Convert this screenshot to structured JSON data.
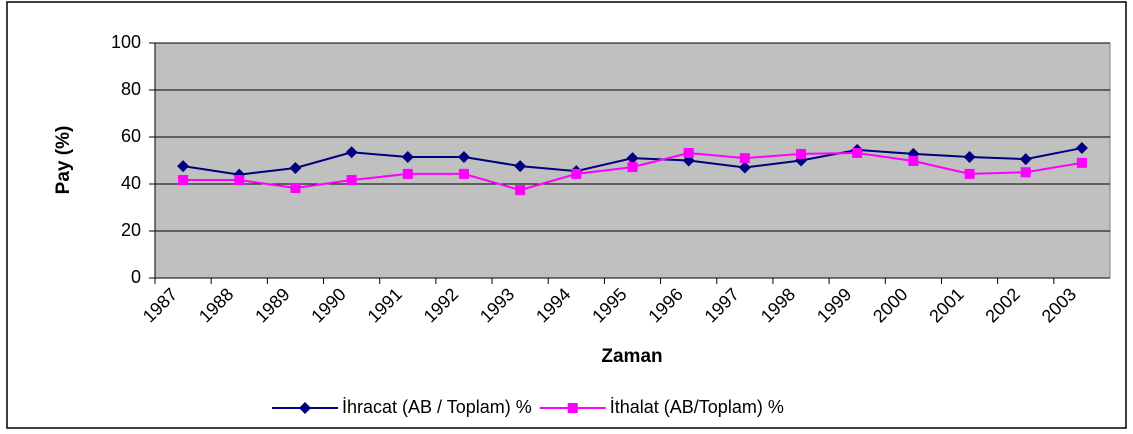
{
  "chart_data": {
    "type": "line",
    "x_label": "Zaman",
    "y_label": "Pay (%)",
    "categories": [
      "1987",
      "1988",
      "1989",
      "1990",
      "1991",
      "1992",
      "1993",
      "1994",
      "1995",
      "1996",
      "1997",
      "1998",
      "1999",
      "2000",
      "2001",
      "2002",
      "2003"
    ],
    "series": [
      {
        "name": "İhracat (AB / Toplam) %",
        "color": "#000080",
        "marker": "diamond",
        "values": [
          47.6,
          44.0,
          46.8,
          53.5,
          51.5,
          51.5,
          47.6,
          45.5,
          51.0,
          50.0,
          47.0,
          50.0,
          54.5,
          52.8,
          51.5,
          50.6,
          55.3
        ]
      },
      {
        "name": "İthalat (AB/Toplam) %",
        "color": "#ff00ff",
        "marker": "square",
        "values": [
          41.7,
          41.7,
          38.3,
          41.7,
          44.3,
          44.3,
          37.4,
          44.3,
          47.2,
          53.2,
          51.0,
          52.8,
          53.2,
          49.8,
          44.3,
          45.0,
          49.0
        ]
      }
    ],
    "ylim": [
      0,
      100
    ],
    "yticks": [
      0,
      20,
      40,
      60,
      80,
      100
    ],
    "grid": true,
    "legend": "bottom"
  }
}
